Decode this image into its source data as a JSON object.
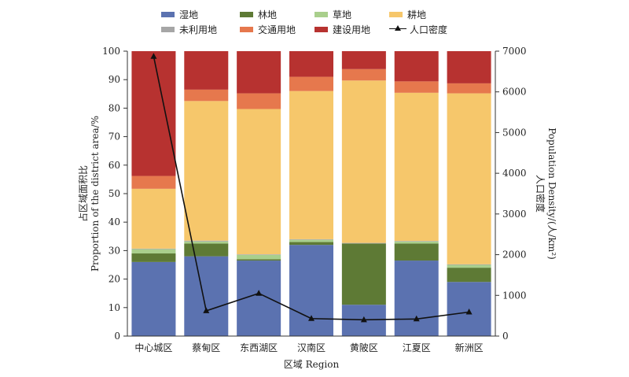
{
  "chart_data": {
    "type": "bar",
    "stacked": true,
    "categories": [
      "中心城区",
      "蔡甸区",
      "东西湖区",
      "汉南区",
      "黄陂区",
      "江夏区",
      "新洲区"
    ],
    "series": [
      {
        "name": "湿地",
        "color": "#5b72b0",
        "values": [
          26,
          28,
          26.5,
          32,
          11,
          26.5,
          19
        ]
      },
      {
        "name": "林地",
        "color": "#5e7a35",
        "values": [
          3,
          4.5,
          0.5,
          1,
          21.5,
          6,
          5
        ]
      },
      {
        "name": "草地",
        "color": "#a9cf8c",
        "values": [
          1.5,
          0.7,
          1.5,
          0.8,
          0,
          0.7,
          1
        ]
      },
      {
        "name": "未利用地",
        "color": "#a6a6a6",
        "values": [
          0.2,
          0.3,
          0.2,
          0.2,
          0.2,
          0.2,
          0.2
        ]
      },
      {
        "name": "耕地",
        "color": "#f6c76b",
        "values": [
          21,
          49,
          51,
          52,
          57,
          52,
          60
        ]
      },
      {
        "name": "交通用地",
        "color": "#e6784d",
        "values": [
          4.5,
          4,
          5.5,
          5,
          4,
          4,
          3.5
        ]
      },
      {
        "name": "建设用地",
        "color": "#b73230",
        "values": [
          43.8,
          13.5,
          14.8,
          9,
          6.3,
          10.6,
          11.3
        ]
      }
    ],
    "line_series": {
      "name": "人口密度",
      "color": "#111111",
      "marker": "triangle",
      "values": [
        6870,
        620,
        1050,
        430,
        400,
        420,
        590
      ]
    },
    "legend_order": [
      "湿地",
      "林地",
      "草地",
      "耕地",
      "未利用地",
      "交通用地",
      "建设用地",
      "人口密度"
    ],
    "xlabel": "区域 Region",
    "ylabel_cn": "占区域面积比",
    "ylabel_en": "Proportion of the district area/%",
    "y2label_cn": "人口密度",
    "y2label_en": "Population Density/(人/km²)",
    "ylim": [
      0,
      100
    ],
    "yticks": [
      "0",
      "10",
      "20",
      "30",
      "40",
      "50",
      "60",
      "70",
      "80",
      "90",
      "100"
    ],
    "y2lim": [
      0,
      7000
    ],
    "y2ticks": [
      "0",
      "1000",
      "2000",
      "3000",
      "4000",
      "5000",
      "6000",
      "7000"
    ],
    "legend_position": "top",
    "grid": false
  }
}
